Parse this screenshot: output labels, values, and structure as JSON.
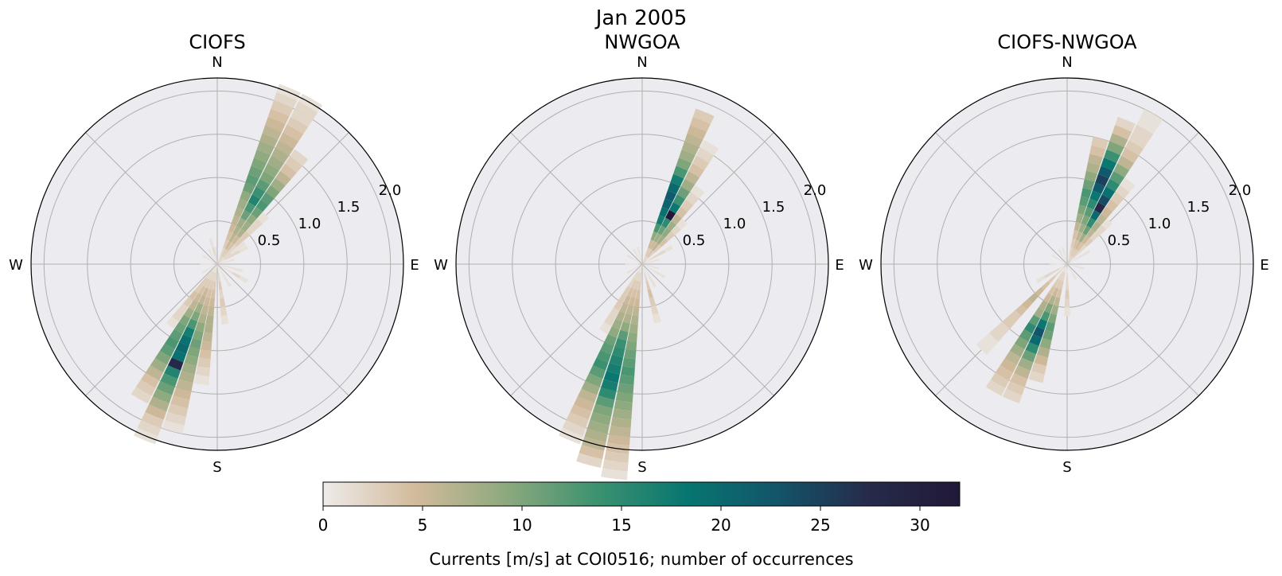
{
  "figure": {
    "title": "Jan 2005"
  },
  "chart_data": [
    {
      "type": "windrose",
      "title": "CIOFS",
      "direction_labels": [
        "N",
        "E",
        "S",
        "W"
      ],
      "radial_ticks": [
        "0.5",
        "1.0",
        "1.5",
        "2.0"
      ],
      "r_values": [
        0.5,
        1.0,
        1.5,
        2.0
      ],
      "rlim": [
        0,
        2.15
      ],
      "grid": true,
      "speed_bin_width": 0.1,
      "sectors": [
        {
          "angle": 22.5,
          "counts": [
            2,
            2,
            3,
            4,
            5,
            6,
            7,
            8,
            9,
            11,
            12,
            11,
            10,
            9,
            8,
            7,
            6,
            5,
            4,
            3,
            2,
            1
          ]
        },
        {
          "angle": 30,
          "counts": [
            2,
            3,
            5,
            6,
            7,
            8,
            11,
            13,
            16,
            14,
            12,
            10,
            9,
            8,
            7,
            6,
            5,
            4,
            3,
            2,
            2,
            1
          ]
        },
        {
          "angle": 37.5,
          "counts": [
            2,
            3,
            4,
            5,
            7,
            8,
            9,
            11,
            13,
            12,
            10,
            8,
            6,
            4,
            3,
            2
          ]
        },
        {
          "angle": 45,
          "counts": [
            1,
            2,
            2,
            3,
            3,
            2,
            2,
            1
          ]
        },
        {
          "angle": 52.5,
          "counts": [
            1,
            2,
            1,
            1
          ]
        },
        {
          "angle": 60,
          "counts": [
            1,
            2,
            2,
            1
          ]
        },
        {
          "angle": 75,
          "counts": [
            1,
            1
          ]
        },
        {
          "angle": 105,
          "counts": [
            1,
            1,
            1
          ]
        },
        {
          "angle": 120,
          "counts": [
            1,
            1,
            2,
            1
          ]
        },
        {
          "angle": 150,
          "counts": [
            1,
            1,
            1
          ]
        },
        {
          "angle": 172.5,
          "counts": [
            1,
            2,
            3,
            2,
            3,
            2,
            1
          ]
        },
        {
          "angle": 187.5,
          "counts": [
            1,
            2,
            3,
            4,
            5,
            6,
            7,
            7,
            6,
            5,
            4,
            3,
            2,
            1
          ]
        },
        {
          "angle": 195,
          "counts": [
            1,
            2,
            3,
            4,
            5,
            6,
            7,
            9,
            10,
            11,
            10,
            9,
            8,
            7,
            6,
            5,
            4,
            3,
            2,
            1
          ]
        },
        {
          "angle": 202.5,
          "counts": [
            1,
            2,
            3,
            5,
            6,
            8,
            10,
            13,
            17,
            19,
            20,
            19,
            28,
            16,
            13,
            11,
            9,
            7,
            5,
            3,
            2,
            1
          ]
        },
        {
          "angle": 210,
          "counts": [
            1,
            2,
            3,
            4,
            5,
            6,
            8,
            10,
            11,
            12,
            13,
            12,
            10,
            8,
            6,
            4,
            3,
            2
          ]
        },
        {
          "angle": 217.5,
          "counts": [
            1,
            2,
            3,
            3,
            4,
            3,
            2,
            2,
            1
          ]
        },
        {
          "angle": 240,
          "counts": [
            1,
            1
          ]
        },
        {
          "angle": 270,
          "counts": [
            1,
            1
          ]
        },
        {
          "angle": 300,
          "counts": [
            1,
            1
          ]
        },
        {
          "angle": 330,
          "counts": [
            1,
            1
          ]
        },
        {
          "angle": 345,
          "counts": [
            1,
            2,
            1
          ]
        },
        {
          "angle": 352.5,
          "counts": [
            1,
            1
          ]
        }
      ]
    },
    {
      "type": "windrose",
      "title": "NWGOA",
      "direction_labels": [
        "N",
        "E",
        "S",
        "W"
      ],
      "radial_ticks": [
        "0.5",
        "1.0",
        "1.5",
        "2.0"
      ],
      "r_values": [
        0.5,
        1.0,
        1.5,
        2.0
      ],
      "rlim": [
        0,
        2.15
      ],
      "grid": true,
      "speed_bin_width": 0.1,
      "sectors": [
        {
          "angle": 22.5,
          "counts": [
            2,
            3,
            5,
            9,
            13,
            17,
            19,
            21,
            22,
            20,
            17,
            13,
            10,
            8,
            7,
            6,
            5,
            4,
            3
          ]
        },
        {
          "angle": 30,
          "counts": [
            2,
            3,
            5,
            8,
            11,
            15,
            33,
            18,
            14,
            11,
            8,
            6,
            4,
            3,
            2,
            1
          ]
        },
        {
          "angle": 37.5,
          "counts": [
            2,
            4,
            6,
            8,
            9,
            8,
            6,
            4,
            3,
            2,
            1
          ]
        },
        {
          "angle": 45,
          "counts": [
            1,
            2,
            3,
            4,
            3,
            2,
            1
          ]
        },
        {
          "angle": 60,
          "counts": [
            1,
            2,
            2,
            1
          ]
        },
        {
          "angle": 75,
          "counts": [
            1,
            1
          ]
        },
        {
          "angle": 105,
          "counts": [
            1,
            1
          ]
        },
        {
          "angle": 120,
          "counts": [
            1,
            1,
            1
          ]
        },
        {
          "angle": 150,
          "counts": [
            1,
            1,
            1
          ]
        },
        {
          "angle": 165,
          "counts": [
            1,
            2,
            3,
            4,
            3,
            2,
            1
          ]
        },
        {
          "angle": 187.5,
          "counts": [
            1,
            2,
            3,
            4,
            5,
            6,
            7,
            8,
            9,
            10,
            11,
            12,
            13,
            12,
            11,
            10,
            9,
            8,
            7,
            6,
            5,
            4,
            3,
            2,
            1
          ]
        },
        {
          "angle": 195,
          "counts": [
            1,
            2,
            3,
            4,
            5,
            6,
            7,
            9,
            12,
            14,
            15,
            16,
            17,
            18,
            17,
            15,
            12,
            10,
            9,
            8,
            7,
            6,
            4,
            2
          ]
        },
        {
          "angle": 202.5,
          "counts": [
            1,
            2,
            3,
            4,
            5,
            6,
            7,
            8,
            9,
            11,
            12,
            13,
            14,
            12,
            10,
            8,
            6,
            5,
            4,
            3,
            2,
            1
          ]
        },
        {
          "angle": 210,
          "counts": [
            1,
            2,
            2,
            3,
            3,
            3,
            2,
            2,
            1
          ]
        },
        {
          "angle": 240,
          "counts": [
            1,
            1
          ]
        },
        {
          "angle": 270,
          "counts": [
            1,
            1
          ]
        },
        {
          "angle": 300,
          "counts": [
            1,
            1
          ]
        },
        {
          "angle": 330,
          "counts": [
            1,
            1
          ]
        },
        {
          "angle": 345,
          "counts": [
            1,
            1
          ]
        }
      ]
    },
    {
      "type": "windrose",
      "title": "CIOFS-NWGOA",
      "direction_labels": [
        "N",
        "E",
        "S",
        "W"
      ],
      "radial_ticks": [
        "0.5",
        "1.0",
        "1.5",
        "2.0"
      ],
      "r_values": [
        0.5,
        1.0,
        1.5,
        2.0
      ],
      "rlim": [
        0,
        2.15
      ],
      "grid": true,
      "speed_bin_width": 0.1,
      "sectors": [
        {
          "angle": 15,
          "counts": [
            1,
            2,
            3,
            4,
            6,
            8,
            10,
            12,
            13,
            11,
            9,
            7,
            6,
            4,
            3
          ]
        },
        {
          "angle": 22.5,
          "counts": [
            2,
            3,
            4,
            6,
            8,
            10,
            12,
            15,
            18,
            22,
            25,
            22,
            18,
            14,
            10,
            7,
            4,
            2
          ]
        },
        {
          "angle": 30,
          "counts": [
            2,
            3,
            5,
            8,
            11,
            15,
            20,
            28,
            24,
            19,
            15,
            12,
            9,
            6,
            4,
            3,
            2,
            2,
            1,
            1
          ]
        },
        {
          "angle": 37.5,
          "counts": [
            2,
            3,
            4,
            5,
            6,
            7,
            6,
            5,
            4,
            3,
            2,
            1
          ]
        },
        {
          "angle": 45,
          "counts": [
            1,
            2,
            2,
            3,
            2,
            2,
            1
          ]
        },
        {
          "angle": 60,
          "counts": [
            1,
            1,
            1
          ]
        },
        {
          "angle": 105,
          "counts": [
            1,
            1
          ]
        },
        {
          "angle": 150,
          "counts": [
            1,
            1
          ]
        },
        {
          "angle": 180,
          "counts": [
            1,
            2,
            2,
            3,
            2,
            1
          ]
        },
        {
          "angle": 195,
          "counts": [
            1,
            2,
            3,
            4,
            6,
            8,
            10,
            12,
            11,
            9,
            7,
            5,
            3,
            2
          ]
        },
        {
          "angle": 202.5,
          "counts": [
            1,
            2,
            3,
            5,
            7,
            10,
            13,
            18,
            23,
            20,
            15,
            11,
            8,
            6,
            4,
            3,
            2
          ]
        },
        {
          "angle": 210,
          "counts": [
            1,
            2,
            3,
            4,
            5,
            7,
            8,
            12,
            15,
            12,
            10,
            8,
            6,
            5,
            4,
            3,
            2
          ]
        },
        {
          "angle": 225,
          "counts": [
            1,
            2,
            3,
            4,
            5,
            6,
            5,
            4,
            3,
            3,
            2,
            2,
            1,
            1
          ]
        },
        {
          "angle": 240,
          "counts": [
            1,
            2,
            2,
            1
          ]
        },
        {
          "angle": 270,
          "counts": [
            1,
            1
          ]
        },
        {
          "angle": 300,
          "counts": [
            1,
            1
          ]
        },
        {
          "angle": 330,
          "counts": [
            1,
            1
          ]
        },
        {
          "angle": 345,
          "counts": [
            1,
            1
          ]
        }
      ]
    }
  ],
  "colorbar": {
    "label": "Currents [m/s] at COI0516; number of occurrences",
    "range": [
      0,
      32
    ],
    "ticks": [
      0,
      5,
      10,
      15,
      20,
      25,
      30
    ],
    "tick_labels": [
      "0",
      "5",
      "10",
      "15",
      "20",
      "25",
      "30"
    ],
    "orientation": "horizontal",
    "placement": "bottom-center",
    "colormap": "cmocean rain",
    "stops": [
      "#eeebea",
      "#d3bb9c",
      "#8ea97e",
      "#3d9270",
      "#077670",
      "#13546a",
      "#262b4a",
      "#211837"
    ]
  },
  "style": {
    "axes_background": "#ecebf0",
    "grid_color": "#b0b0b0",
    "frame_color": "#000000"
  }
}
